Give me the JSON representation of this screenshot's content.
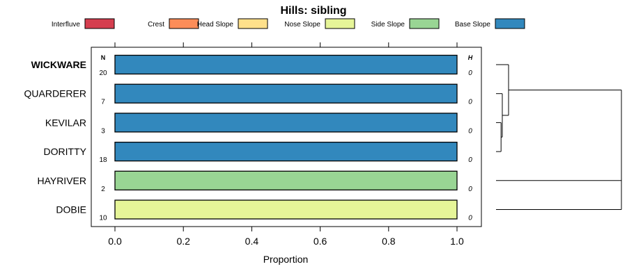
{
  "chart_data": {
    "type": "bar",
    "title": "Hills: sibling",
    "xlabel": "Proportion",
    "xlim": [
      0,
      1
    ],
    "x_ticks": [
      "0.0",
      "0.2",
      "0.4",
      "0.6",
      "0.8",
      "1.0"
    ],
    "x_tick_values": [
      0,
      0.2,
      0.4,
      0.6,
      0.8,
      1.0
    ],
    "n_header": "N",
    "h_header": "H",
    "legend_placement": "top",
    "legend": [
      {
        "name": "Interfluve",
        "color": "#D53E4F"
      },
      {
        "name": "Crest",
        "color": "#FC8D59"
      },
      {
        "name": "Head Slope",
        "color": "#FEE08B"
      },
      {
        "name": "Nose Slope",
        "color": "#E6F598"
      },
      {
        "name": "Side Slope",
        "color": "#99D594"
      },
      {
        "name": "Base Slope",
        "color": "#3288BD"
      }
    ],
    "categories": [
      "WICKWARE",
      "QUARDERER",
      "KEVILAR",
      "DORITTY",
      "HAYRIVER",
      "DOBIE"
    ],
    "bold_category": "WICKWARE",
    "n_values": [
      "20",
      "7",
      "3",
      "18",
      "2",
      "10"
    ],
    "h_values": [
      "0",
      "0",
      "0",
      "0",
      "0",
      "0"
    ],
    "bars": [
      {
        "category": "WICKWARE",
        "segments": [
          {
            "class": "Base Slope",
            "value": 1.0
          }
        ]
      },
      {
        "category": "QUARDERER",
        "segments": [
          {
            "class": "Base Slope",
            "value": 1.0
          }
        ]
      },
      {
        "category": "KEVILAR",
        "segments": [
          {
            "class": "Base Slope",
            "value": 1.0
          }
        ]
      },
      {
        "category": "DORITTY",
        "segments": [
          {
            "class": "Base Slope",
            "value": 1.0
          }
        ]
      },
      {
        "category": "HAYRIVER",
        "segments": [
          {
            "class": "Side Slope",
            "value": 1.0
          }
        ]
      },
      {
        "category": "DOBIE",
        "segments": [
          {
            "class": "Nose Slope",
            "value": 1.0
          }
        ]
      }
    ],
    "dendrogram": {
      "merges": [
        {
          "a": "KEVILAR",
          "b": "DORITTY",
          "height": 0.04
        },
        {
          "a": "QUARDERER",
          "b": "KEVILAR+DORITTY",
          "height": 0.05
        },
        {
          "a": "WICKWARE",
          "b": "QUARDERER+KEVILAR+DORITTY",
          "height": 0.1
        },
        {
          "a": "HAYRIVER",
          "b": "DOBIE",
          "height": 1.0
        },
        {
          "a": "WICKWARE+QUARDERER+KEVILAR+DORITTY",
          "b": "HAYRIVER+DOBIE",
          "height": 1.0
        }
      ]
    }
  }
}
